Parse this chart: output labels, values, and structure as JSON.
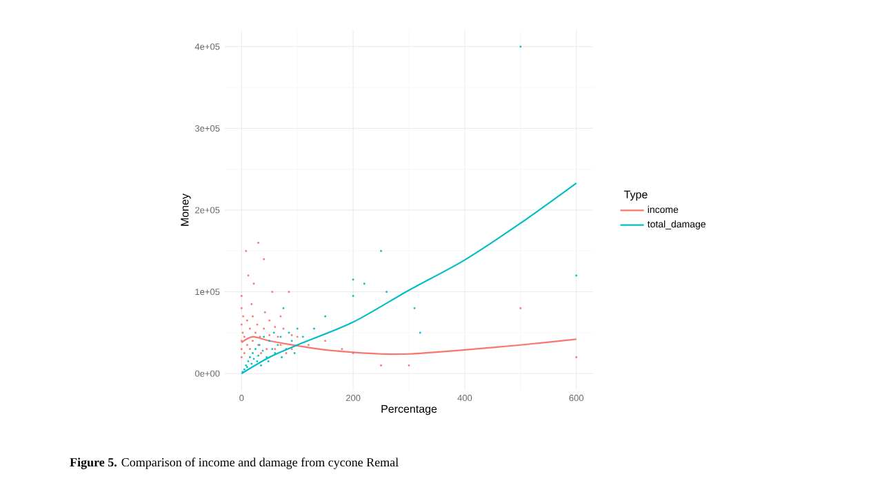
{
  "chart_data": {
    "type": "scatter",
    "xlabel": "Percentage",
    "ylabel": "Money",
    "legend_title": "Type",
    "xlim": [
      -30,
      630
    ],
    "ylim": [
      -20000,
      420000
    ],
    "xticks": [
      0,
      200,
      400,
      600
    ],
    "yticks": [
      {
        "value": 0,
        "label": "0e+00"
      },
      {
        "value": 100000,
        "label": "1e+05"
      },
      {
        "value": 200000,
        "label": "2e+05"
      },
      {
        "value": 300000,
        "label": "3e+05"
      },
      {
        "value": 400000,
        "label": "4e+05"
      }
    ],
    "grid": true,
    "legend": "right",
    "series": [
      {
        "color": "#f8766d",
        "x": [
          0,
          0,
          0,
          0,
          0,
          0,
          2,
          3,
          5,
          5,
          8,
          10,
          10,
          12,
          15,
          15,
          18,
          20,
          20,
          22,
          25,
          28,
          30,
          30,
          33,
          35,
          40,
          40,
          42,
          45,
          50,
          50,
          55,
          60,
          60,
          65,
          70,
          70,
          75,
          80,
          85,
          90,
          90,
          100,
          120,
          150,
          180,
          200,
          250,
          300,
          500,
          600
        ],
        "values": [
          20000,
          40000,
          60000,
          80000,
          95000,
          30000,
          50000,
          70000,
          25000,
          45000,
          150000,
          35000,
          65000,
          120000,
          55000,
          30000,
          85000,
          40000,
          70000,
          110000,
          50000,
          60000,
          160000,
          35000,
          45000,
          25000,
          140000,
          55000,
          75000,
          30000,
          47000,
          65000,
          100000,
          57000,
          30000,
          45000,
          70000,
          35000,
          55000,
          25000,
          100000,
          47000,
          30000,
          45000,
          35000,
          40000,
          30000,
          25000,
          10000,
          10000,
          80000,
          20000
        ]
      },
      {
        "color": "#00bfc4",
        "x": [
          2,
          5,
          8,
          10,
          12,
          15,
          18,
          20,
          22,
          25,
          28,
          30,
          32,
          35,
          38,
          40,
          45,
          48,
          50,
          55,
          58,
          60,
          65,
          70,
          72,
          75,
          80,
          85,
          90,
          95,
          100,
          110,
          130,
          150,
          200,
          200,
          220,
          250,
          260,
          310,
          320,
          500,
          600
        ],
        "values": [
          2000,
          5000,
          10000,
          8000,
          15000,
          20000,
          12000,
          25000,
          18000,
          30000,
          15000,
          22000,
          35000,
          10000,
          28000,
          45000,
          20000,
          15000,
          40000,
          30000,
          50000,
          25000,
          35000,
          45000,
          20000,
          80000,
          30000,
          50000,
          40000,
          25000,
          55000,
          45000,
          55000,
          70000,
          115000,
          95000,
          110000,
          150000,
          100000,
          80000,
          50000,
          400000,
          120000
        ]
      },
      {
        "type": "line",
        "name": "income",
        "color": "#f8766d",
        "x": [
          0,
          20,
          50,
          100,
          150,
          200,
          250,
          300,
          400,
          500,
          600
        ],
        "values": [
          38000,
          45000,
          40000,
          34000,
          29000,
          26000,
          24000,
          24000,
          29000,
          35000,
          42000
        ]
      },
      {
        "type": "line",
        "name": "total_damage",
        "color": "#00bfc4",
        "x": [
          0,
          50,
          100,
          200,
          300,
          400,
          500,
          600
        ],
        "values": [
          0,
          20000,
          35000,
          63000,
          102000,
          139000,
          184000,
          233000
        ]
      }
    ],
    "annotations": [
      "**Figure 5.** Comparison of income and damage from cycone Remal"
    ]
  }
}
